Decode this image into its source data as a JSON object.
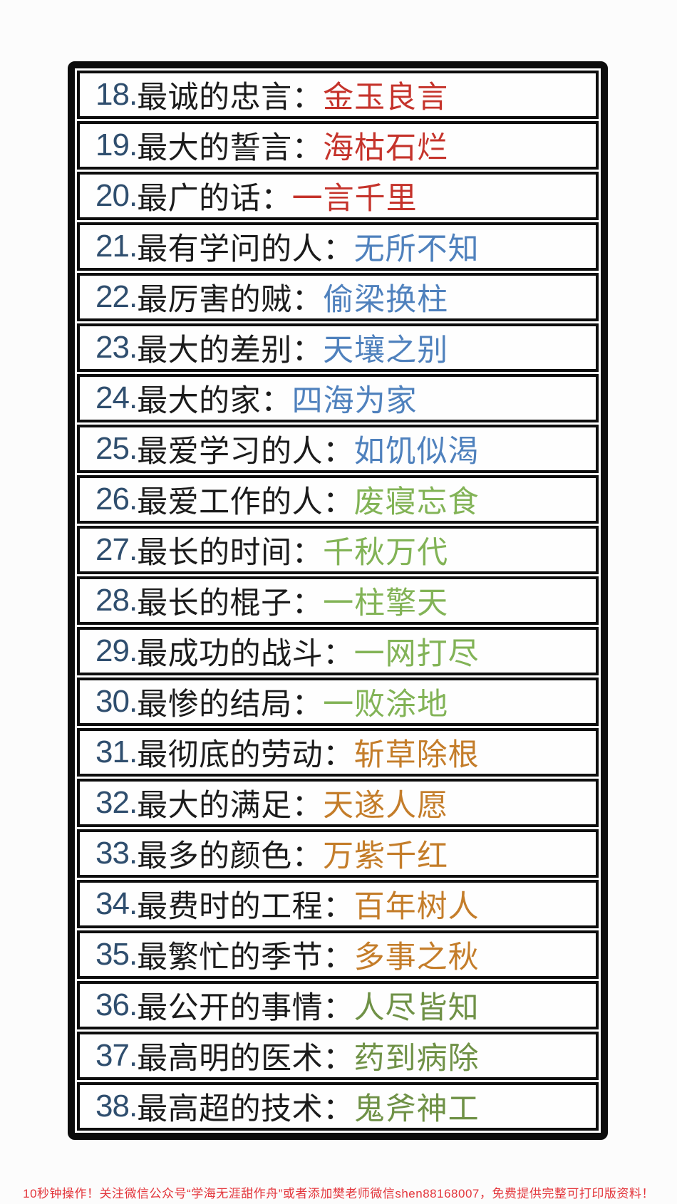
{
  "colors": {
    "red": "#c5332b",
    "blue": "#4f81bd",
    "green": "#82b356",
    "orange": "#c47d2a",
    "olive": "#6f9146",
    "number": "#2f4e6e",
    "text": "#1b1b1b",
    "footer": "#e3353b",
    "border": "#0c0c0c"
  },
  "table": {
    "rows": [
      {
        "num": "18.",
        "desc": "最诚的忠言：",
        "idiom": "金玉良言",
        "color": "red"
      },
      {
        "num": "19.",
        "desc": "最大的誓言：",
        "idiom": "海枯石烂",
        "color": "red"
      },
      {
        "num": "20.",
        "desc": "最广的话：",
        "idiom": "一言千里",
        "color": "red"
      },
      {
        "num": "21.",
        "desc": "最有学问的人：",
        "idiom": "无所不知",
        "color": "blue"
      },
      {
        "num": "22.",
        "desc": "最厉害的贼：",
        "idiom": "偷梁换柱",
        "color": "blue"
      },
      {
        "num": "23.",
        "desc": "最大的差别：",
        "idiom": "天壤之别",
        "color": "blue"
      },
      {
        "num": "24.",
        "desc": "最大的家：",
        "idiom": "四海为家",
        "color": "blue"
      },
      {
        "num": "25.",
        "desc": "最爱学习的人：",
        "idiom": "如饥似渴",
        "color": "blue"
      },
      {
        "num": "26.",
        "desc": "最爱工作的人：",
        "idiom": "废寝忘食",
        "color": "green"
      },
      {
        "num": "27.",
        "desc": "最长的时间：",
        "idiom": "千秋万代",
        "color": "green"
      },
      {
        "num": "28.",
        "desc": "最长的棍子：",
        "idiom": "一柱擎天",
        "color": "green"
      },
      {
        "num": "29.",
        "desc": "最成功的战斗：",
        "idiom": "一网打尽",
        "color": "green"
      },
      {
        "num": "30.",
        "desc": "最惨的结局：",
        "idiom": "一败涂地",
        "color": "green"
      },
      {
        "num": "31.",
        "desc": "最彻底的劳动：",
        "idiom": "斩草除根",
        "color": "orange"
      },
      {
        "num": "32.",
        "desc": "最大的满足：",
        "idiom": "天遂人愿",
        "color": "orange"
      },
      {
        "num": "33.",
        "desc": "最多的颜色：",
        "idiom": "万紫千红",
        "color": "orange"
      },
      {
        "num": "34.",
        "desc": "最费时的工程：",
        "idiom": "百年树人",
        "color": "orange"
      },
      {
        "num": "35.",
        "desc": "最繁忙的季节：",
        "idiom": "多事之秋",
        "color": "orange"
      },
      {
        "num": "36.",
        "desc": "最公开的事情：",
        "idiom": "人尽皆知",
        "color": "olive"
      },
      {
        "num": "37.",
        "desc": "最高明的医术：",
        "idiom": "药到病除",
        "color": "olive"
      },
      {
        "num": "38.",
        "desc": "最高超的技术：",
        "idiom": "鬼斧神工",
        "color": "olive"
      }
    ]
  },
  "footer": {
    "text": "10秒钟操作！关注微信公众号“学海无涯甜作舟”或者添加樊老师微信shen88168007，免费提供完整可打印版资料！"
  }
}
